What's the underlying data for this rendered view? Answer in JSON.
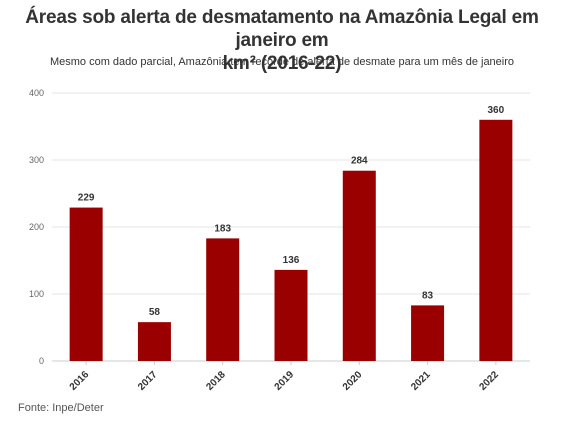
{
  "title_line1": "Áreas sob alerta de desmatamento na Amazônia Legal em janeiro em",
  "title_line2": "km² (2016-22)",
  "subtitle": "Mesmo com dado parcial, Amazônia tem recorde de alerta de desmate para um mês de janeiro",
  "source": "Fonte: Inpe/Deter",
  "colors": {
    "bar": "#9b0000",
    "grid": "#e6e6e6",
    "axis": "#cccccc"
  },
  "chart_data": {
    "type": "bar",
    "title": "Áreas sob alerta de desmatamento na Amazônia Legal em janeiro em km² (2016-22)",
    "subtitle": "Mesmo com dado parcial, Amazônia tem recorde de alerta de desmate para um mês de janeiro",
    "categories": [
      "2016",
      "2017",
      "2018",
      "2019",
      "2020",
      "2021",
      "2022"
    ],
    "values": [
      229,
      58,
      183,
      136,
      284,
      83,
      360
    ],
    "yticks": [
      0,
      100,
      200,
      300,
      400
    ],
    "ylim": [
      0,
      400
    ],
    "xlabel": "",
    "ylabel": "",
    "grid": true,
    "data_labels": true
  }
}
